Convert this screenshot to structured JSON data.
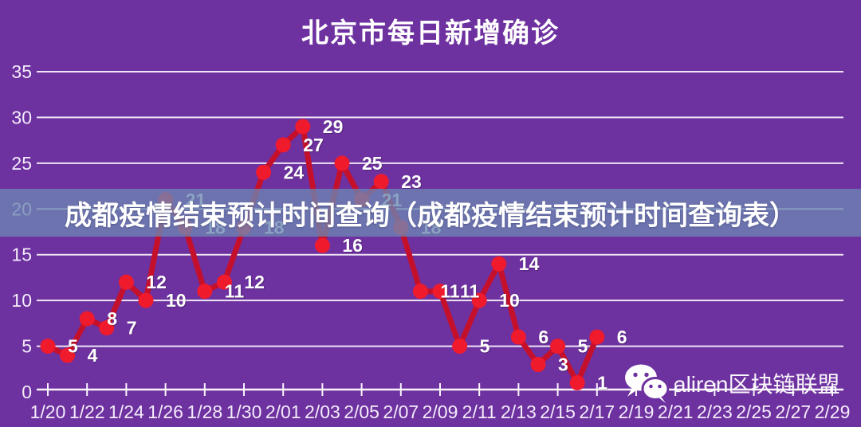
{
  "page": {
    "background_color": "#6E31A0"
  },
  "title": "北京市每日新增确诊",
  "banner": {
    "text": "成都疫情结束预计时间查询（成都疫情结束预计时间查询表）",
    "background_color": "rgba(108,134,178,0.78)",
    "text_color": "#FFFFFF"
  },
  "watermark": {
    "icon": "wechat-icon",
    "label": "aliren区块链联盟"
  },
  "chart_data": {
    "type": "line",
    "title": "北京市每日新增确诊",
    "x": [
      "1/20",
      "1/21",
      "1/22",
      "1/23",
      "1/24",
      "1/25",
      "1/26",
      "1/27",
      "1/28",
      "1/29",
      "1/30",
      "1/31",
      "2/01",
      "2/02",
      "2/03",
      "2/04",
      "2/05",
      "2/06",
      "2/07",
      "2/08",
      "2/09",
      "2/10",
      "2/11",
      "2/12",
      "2/13",
      "2/14",
      "2/15",
      "2/16",
      "2/17"
    ],
    "values": [
      5,
      4,
      8,
      7,
      12,
      10,
      21,
      18,
      11,
      12,
      18,
      24,
      27,
      29,
      16,
      25,
      21,
      23,
      18,
      11,
      11,
      5,
      10,
      14,
      6,
      3,
      5,
      1,
      6
    ],
    "x_axis_tick_labels": [
      "1/20",
      "1/22",
      "1/24",
      "1/26",
      "1/28",
      "1/30",
      "2/01",
      "2/03",
      "2/05",
      "2/07",
      "2/09",
      "2/11",
      "2/13",
      "2/15",
      "2/17",
      "2/19",
      "2/21",
      "2/23",
      "2/25",
      "2/27",
      "2/29"
    ],
    "yticks": [
      0,
      5,
      10,
      15,
      20,
      25,
      30,
      35
    ],
    "ylim": [
      0,
      35
    ],
    "grid": true,
    "legend_position": "none",
    "line_color": "#C5102C",
    "point_color": "#EF1B2D",
    "data_label_color": "#FFFFFF",
    "grid_color": "#FFFFFF"
  }
}
